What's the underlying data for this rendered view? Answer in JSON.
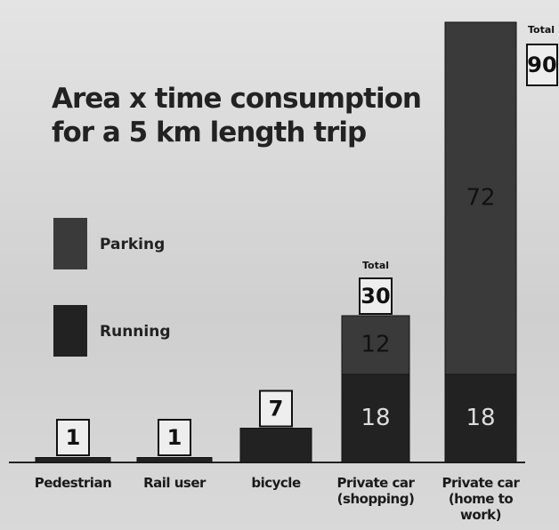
{
  "chart_data": {
    "type": "stacked-bar",
    "title": "Area x time consumption for a 5 km length trip",
    "categories": [
      "Pedestrian",
      "Rail user",
      "bicycle",
      "Private car (shopping)",
      "Private car (home to work)"
    ],
    "series": [
      {
        "name": "Running",
        "color": "#222222",
        "values": [
          1,
          1,
          7,
          18,
          18
        ]
      },
      {
        "name": "Parking",
        "color": "#3a3a3a",
        "values": [
          0,
          0,
          0,
          12,
          72
        ]
      }
    ],
    "totals": [
      1,
      1,
      7,
      30,
      90
    ],
    "total_label": "Total"
  }
}
